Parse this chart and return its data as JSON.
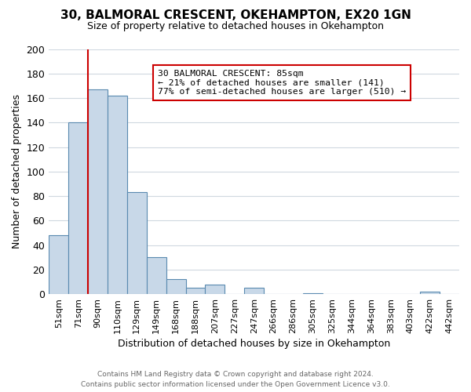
{
  "title": "30, BALMORAL CRESCENT, OKEHAMPTON, EX20 1GN",
  "subtitle": "Size of property relative to detached houses in Okehampton",
  "xlabel": "Distribution of detached houses by size in Okehampton",
  "ylabel": "Number of detached properties",
  "bar_labels": [
    "51sqm",
    "71sqm",
    "90sqm",
    "110sqm",
    "129sqm",
    "149sqm",
    "168sqm",
    "188sqm",
    "207sqm",
    "227sqm",
    "247sqm",
    "266sqm",
    "286sqm",
    "305sqm",
    "325sqm",
    "344sqm",
    "364sqm",
    "383sqm",
    "403sqm",
    "422sqm",
    "442sqm"
  ],
  "bar_values": [
    48,
    140,
    167,
    162,
    83,
    30,
    12,
    5,
    8,
    0,
    5,
    0,
    0,
    1,
    0,
    0,
    0,
    0,
    0,
    2,
    0
  ],
  "bar_color": "#c8d8e8",
  "bar_edge_color": "#5a8ab0",
  "ylim": [
    0,
    200
  ],
  "yticks": [
    0,
    20,
    40,
    60,
    80,
    100,
    120,
    140,
    160,
    180,
    200
  ],
  "property_line_x": 1.5,
  "property_line_color": "#cc0000",
  "annotation_title": "30 BALMORAL CRESCENT: 85sqm",
  "annotation_line1": "← 21% of detached houses are smaller (141)",
  "annotation_line2": "77% of semi-detached houses are larger (510) →",
  "annotation_box_color": "#ffffff",
  "annotation_box_edge": "#cc0000",
  "footer1": "Contains HM Land Registry data © Crown copyright and database right 2024.",
  "footer2": "Contains public sector information licensed under the Open Government Licence v3.0.",
  "bg_color": "#ffffff",
  "grid_color": "#d0d8e0"
}
